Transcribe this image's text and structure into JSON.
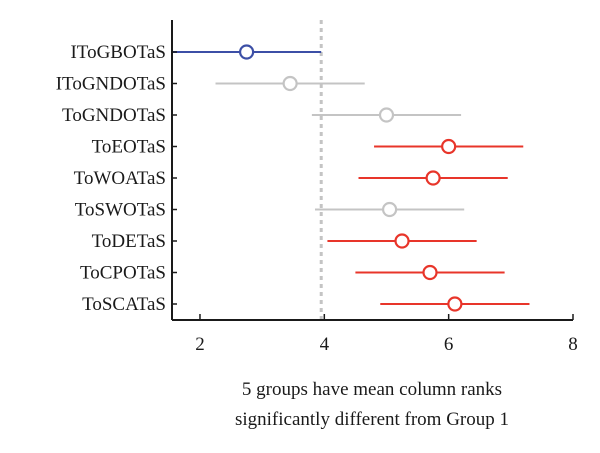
{
  "chart_data": {
    "type": "scatter",
    "subtype": "multiple-comparison-intervals",
    "categories": [
      "IToGBOTaS",
      "IToGNDOTaS",
      "ToGNDOTaS",
      "ToEOTaS",
      "ToWOATaS",
      "ToSWOTaS",
      "ToDETaS",
      "ToCPOTaS",
      "ToSCATaS"
    ],
    "points": [
      {
        "category": "IToGBOTaS",
        "mean": 2.75,
        "low": 1.55,
        "high": 3.95,
        "status": "selected"
      },
      {
        "category": "IToGNDOTaS",
        "mean": 3.45,
        "low": 2.25,
        "high": 4.65,
        "status": "not-significant"
      },
      {
        "category": "ToGNDOTaS",
        "mean": 5.0,
        "low": 3.8,
        "high": 6.2,
        "status": "not-significant"
      },
      {
        "category": "ToEOTaS",
        "mean": 6.0,
        "low": 4.8,
        "high": 7.2,
        "status": "significant"
      },
      {
        "category": "ToWOATaS",
        "mean": 5.75,
        "low": 4.55,
        "high": 6.95,
        "status": "significant"
      },
      {
        "category": "ToSWOTaS",
        "mean": 5.05,
        "low": 3.85,
        "high": 6.25,
        "status": "not-significant"
      },
      {
        "category": "ToDETaS",
        "mean": 5.25,
        "low": 4.05,
        "high": 6.45,
        "status": "significant"
      },
      {
        "category": "ToCPOTaS",
        "mean": 5.7,
        "low": 4.5,
        "high": 6.9,
        "status": "significant"
      },
      {
        "category": "ToSCATaS",
        "mean": 6.1,
        "low": 4.9,
        "high": 7.3,
        "status": "significant"
      }
    ],
    "reference_line_x": 3.95,
    "xlim": [
      1.55,
      8
    ],
    "xticks": [
      2,
      4,
      6,
      8
    ],
    "xlabel_lines": [
      "5 groups have mean column ranks",
      "significantly different from Group 1"
    ],
    "title": "",
    "ylabel": "",
    "grid": false,
    "colors": {
      "selected": "#3c4fa6",
      "not-significant": "#c4c4c4",
      "significant": "#e8352a",
      "reference": "#c4c4c4",
      "axis": "#1a1a1a"
    }
  }
}
